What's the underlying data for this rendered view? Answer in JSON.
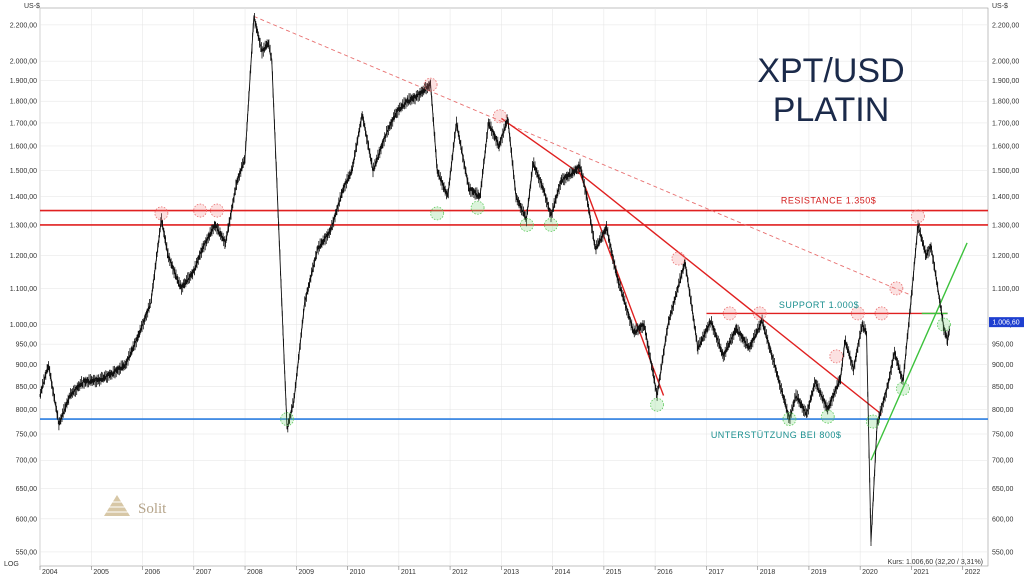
{
  "chart_data": {
    "type": "line",
    "title": "XPT/USD",
    "subtitle": "PLATIN",
    "y_unit": "US-$",
    "y_scale": "log",
    "scale_label": "LOG",
    "ylim": [
      530,
      2300
    ],
    "xlim": [
      "2004-01-01",
      "2022-06-30"
    ],
    "x_ticks": [
      "2004",
      "2005",
      "2006",
      "2007",
      "2008",
      "2009",
      "2010",
      "2011",
      "2012",
      "2013",
      "2014",
      "2015",
      "2016",
      "2017",
      "2018",
      "2019",
      "2020",
      "2021",
      "2022"
    ],
    "y_ticks": [
      {
        "value": 550,
        "label": "550,00"
      },
      {
        "value": 600,
        "label": "600,00"
      },
      {
        "value": 650,
        "label": "650,00"
      },
      {
        "value": 700,
        "label": "700,00"
      },
      {
        "value": 750,
        "label": "750,00"
      },
      {
        "value": 800,
        "label": "800,00"
      },
      {
        "value": 850,
        "label": "850,00"
      },
      {
        "value": 900,
        "label": "900,00"
      },
      {
        "value": 950,
        "label": "950,00"
      },
      {
        "value": 1000,
        "label": "1.000,00"
      },
      {
        "value": 1100,
        "label": "1.100,00"
      },
      {
        "value": 1200,
        "label": "1.200,00"
      },
      {
        "value": 1300,
        "label": "1.300,00"
      },
      {
        "value": 1400,
        "label": "1.400,00"
      },
      {
        "value": 1500,
        "label": "1.500,00"
      },
      {
        "value": 1600,
        "label": "1.600,00"
      },
      {
        "value": 1700,
        "label": "1.700,00"
      },
      {
        "value": 1800,
        "label": "1.800,00"
      },
      {
        "value": 1900,
        "label": "1.900,00"
      },
      {
        "value": 2000,
        "label": "2.000,00"
      },
      {
        "value": 2200,
        "label": "2.200,00"
      }
    ],
    "grid": true,
    "series": [
      {
        "color": "#111111",
        "points": [
          [
            "2004-01-01",
            830
          ],
          [
            "2004-03-01",
            900
          ],
          [
            "2004-05-15",
            770
          ],
          [
            "2004-08-01",
            830
          ],
          [
            "2004-11-01",
            860
          ],
          [
            "2005-03-01",
            865
          ],
          [
            "2005-06-01",
            880
          ],
          [
            "2005-09-01",
            900
          ],
          [
            "2005-12-01",
            970
          ],
          [
            "2006-03-01",
            1060
          ],
          [
            "2006-05-15",
            1320
          ],
          [
            "2006-07-01",
            1200
          ],
          [
            "2006-10-01",
            1100
          ],
          [
            "2007-01-01",
            1150
          ],
          [
            "2007-03-01",
            1220
          ],
          [
            "2007-06-01",
            1300
          ],
          [
            "2007-08-15",
            1240
          ],
          [
            "2007-11-01",
            1450
          ],
          [
            "2008-01-01",
            1550
          ],
          [
            "2008-03-04",
            2250
          ],
          [
            "2008-05-01",
            2050
          ],
          [
            "2008-06-15",
            2100
          ],
          [
            "2008-07-10",
            2000
          ],
          [
            "2008-08-15",
            1450
          ],
          [
            "2008-10-01",
            950
          ],
          [
            "2008-10-27",
            760
          ],
          [
            "2008-12-15",
            820
          ],
          [
            "2009-03-01",
            1060
          ],
          [
            "2009-06-01",
            1220
          ],
          [
            "2009-09-01",
            1280
          ],
          [
            "2009-12-01",
            1430
          ],
          [
            "2010-02-01",
            1500
          ],
          [
            "2010-04-15",
            1740
          ],
          [
            "2010-07-01",
            1500
          ],
          [
            "2010-10-01",
            1650
          ],
          [
            "2010-12-15",
            1750
          ],
          [
            "2011-03-01",
            1800
          ],
          [
            "2011-05-01",
            1820
          ],
          [
            "2011-08-15",
            1880
          ],
          [
            "2011-10-01",
            1500
          ],
          [
            "2011-12-15",
            1400
          ],
          [
            "2012-02-15",
            1700
          ],
          [
            "2012-05-15",
            1430
          ],
          [
            "2012-08-01",
            1400
          ],
          [
            "2012-10-01",
            1700
          ],
          [
            "2012-12-15",
            1600
          ],
          [
            "2013-02-15",
            1720
          ],
          [
            "2013-04-15",
            1400
          ],
          [
            "2013-06-28",
            1320
          ],
          [
            "2013-08-15",
            1530
          ],
          [
            "2013-11-01",
            1420
          ],
          [
            "2013-12-20",
            1330
          ],
          [
            "2014-03-01",
            1460
          ],
          [
            "2014-06-15",
            1500
          ],
          [
            "2014-07-15",
            1520
          ],
          [
            "2014-09-01",
            1400
          ],
          [
            "2014-11-01",
            1220
          ],
          [
            "2015-01-20",
            1290
          ],
          [
            "2015-04-01",
            1140
          ],
          [
            "2015-08-01",
            980
          ],
          [
            "2015-10-15",
            1000
          ],
          [
            "2016-01-15",
            830
          ],
          [
            "2016-04-01",
            1000
          ],
          [
            "2016-08-01",
            1180
          ],
          [
            "2016-11-01",
            940
          ],
          [
            "2017-02-01",
            1010
          ],
          [
            "2017-05-01",
            920
          ],
          [
            "2017-08-01",
            990
          ],
          [
            "2017-11-01",
            940
          ],
          [
            "2018-02-01",
            1010
          ],
          [
            "2018-05-01",
            900
          ],
          [
            "2018-08-15",
            780
          ],
          [
            "2018-10-01",
            830
          ],
          [
            "2018-12-15",
            790
          ],
          [
            "2019-02-15",
            860
          ],
          [
            "2019-05-15",
            800
          ],
          [
            "2019-08-15",
            870
          ],
          [
            "2019-09-15",
            960
          ],
          [
            "2019-11-15",
            890
          ],
          [
            "2020-01-15",
            1000
          ],
          [
            "2020-02-15",
            980
          ],
          [
            "2020-03-18",
            565
          ],
          [
            "2020-05-01",
            770
          ],
          [
            "2020-07-15",
            850
          ],
          [
            "2020-09-01",
            930
          ],
          [
            "2020-11-01",
            860
          ],
          [
            "2021-01-01",
            1080
          ],
          [
            "2021-02-16",
            1300
          ],
          [
            "2021-04-15",
            1200
          ],
          [
            "2021-05-20",
            1230
          ],
          [
            "2021-07-15",
            1080
          ],
          [
            "2021-08-20",
            990
          ],
          [
            "2021-09-15",
            960
          ],
          [
            "2021-09-30",
            990
          ]
        ]
      }
    ],
    "horizontal_lines": [
      {
        "value": 1350,
        "color": "#e02020"
      },
      {
        "value": 1300,
        "color": "#e02020"
      },
      {
        "value": 780,
        "color": "#2a7de1"
      }
    ],
    "trendlines": [
      {
        "style": "dashed",
        "color": "#e87070",
        "from": [
          "2008-03-04",
          2250
        ],
        "to": [
          "2021-01-01",
          1080
        ]
      },
      {
        "style": "solid",
        "color": "#e02020",
        "from": [
          "2013-01-01",
          1720
        ],
        "to": [
          "2014-08-01",
          1480
        ]
      },
      {
        "style": "solid",
        "color": "#e02020",
        "from": [
          "2014-07-01",
          1510
        ],
        "to": [
          "2016-03-01",
          830
        ]
      },
      {
        "style": "solid",
        "color": "#e02020",
        "from": [
          "2014-08-01",
          1480
        ],
        "to": [
          "2020-06-01",
          790
        ]
      },
      {
        "style": "solid",
        "color": "#e02020",
        "from": [
          "2017-01-01",
          1030
        ],
        "to": [
          "2021-09-15",
          1030
        ]
      },
      {
        "style": "solid",
        "color": "#3cc23c",
        "from": [
          "2021-03-15",
          1030
        ],
        "to": [
          "2021-09-15",
          1030
        ]
      },
      {
        "style": "solid",
        "color": "#3cc23c",
        "from": [
          "2020-03-18",
          700
        ],
        "to": [
          "2022-02-01",
          1240
        ]
      }
    ],
    "markers": [
      {
        "date": "2006-05-15",
        "value": 1340,
        "kind": "resistance"
      },
      {
        "date": "2007-02-15",
        "value": 1350,
        "kind": "resistance"
      },
      {
        "date": "2007-06-15",
        "value": 1350,
        "kind": "resistance"
      },
      {
        "date": "2011-08-15",
        "value": 1880,
        "kind": "resistance"
      },
      {
        "date": "2012-12-20",
        "value": 1730,
        "kind": "resistance"
      },
      {
        "date": "2016-06-15",
        "value": 1190,
        "kind": "resistance"
      },
      {
        "date": "2017-06-15",
        "value": 1030,
        "kind": "resistance"
      },
      {
        "date": "2018-01-15",
        "value": 1030,
        "kind": "resistance"
      },
      {
        "date": "2019-07-15",
        "value": 920,
        "kind": "resistance"
      },
      {
        "date": "2019-12-15",
        "value": 1030,
        "kind": "resistance"
      },
      {
        "date": "2020-06-01",
        "value": 1030,
        "kind": "resistance"
      },
      {
        "date": "2020-09-15",
        "value": 1100,
        "kind": "resistance"
      },
      {
        "date": "2021-02-16",
        "value": 1330,
        "kind": "resistance"
      },
      {
        "date": "2008-10-27",
        "value": 780,
        "kind": "support"
      },
      {
        "date": "2011-10-01",
        "value": 1340,
        "kind": "support"
      },
      {
        "date": "2012-07-15",
        "value": 1360,
        "kind": "support"
      },
      {
        "date": "2013-07-01",
        "value": 1300,
        "kind": "support"
      },
      {
        "date": "2013-12-20",
        "value": 1300,
        "kind": "support"
      },
      {
        "date": "2016-01-15",
        "value": 810,
        "kind": "support"
      },
      {
        "date": "2018-08-15",
        "value": 780,
        "kind": "support"
      },
      {
        "date": "2019-05-15",
        "value": 785,
        "kind": "support"
      },
      {
        "date": "2020-04-01",
        "value": 775,
        "kind": "support"
      },
      {
        "date": "2020-11-01",
        "value": 845,
        "kind": "support"
      },
      {
        "date": "2021-08-20",
        "value": 1000,
        "kind": "support"
      }
    ],
    "annotations": {
      "resistance": {
        "text": "RESISTANCE 1.350$",
        "date": "2018-06-15",
        "value": 1375
      },
      "support": {
        "text": "SUPPORT 1.000$",
        "date": "2018-06-01",
        "value": 1045
      },
      "floor": {
        "text": "UNTERSTÜTZUNG BEI 800$",
        "date": "2017-02-01",
        "value": 742
      }
    },
    "last_price_label": "1.006,60",
    "last_price_value": 1006.6
  },
  "footer": {
    "kurs": "Kurs: 1.006,60 (32,20 / 3,31%)"
  },
  "logo": {
    "name": "Solit"
  },
  "colors": {
    "price": "#111111",
    "resistance": "#e02020",
    "support_line": "#2a7de1",
    "uptrend": "#3cc23c",
    "title": "#1b2a4a"
  }
}
